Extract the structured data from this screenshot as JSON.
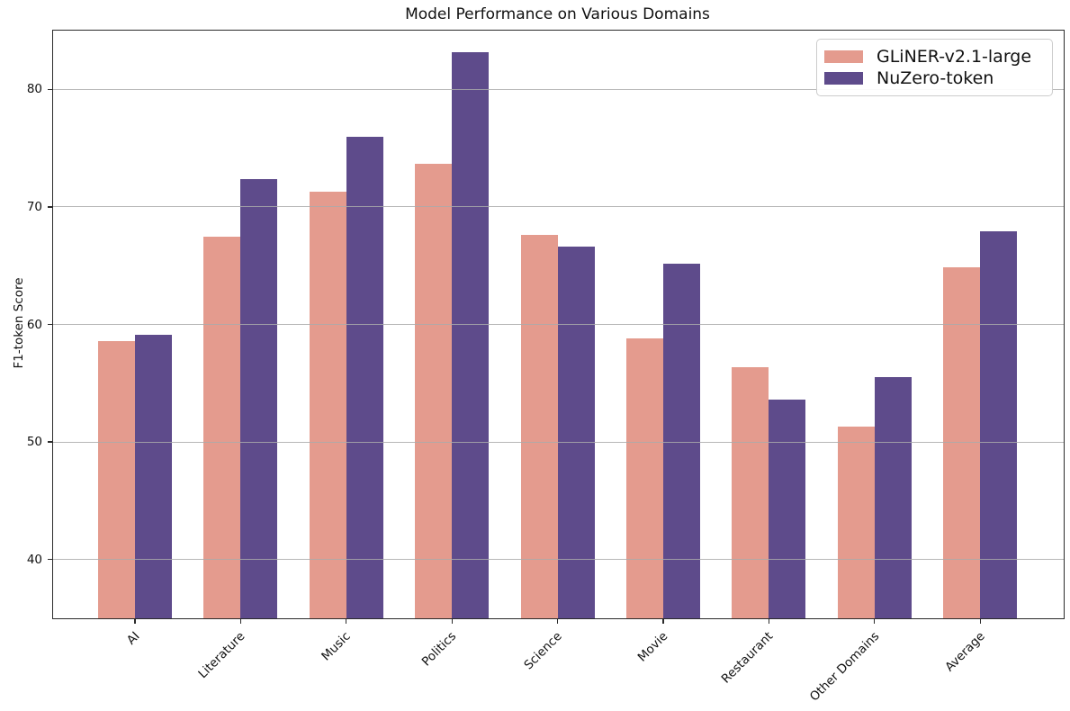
{
  "chart_data": {
    "type": "bar",
    "title": "Model Performance on Various Domains",
    "xlabel": "",
    "ylabel": "F1-token Score",
    "categories": [
      "AI",
      "Literature",
      "Music",
      "Politics",
      "Science",
      "Movie",
      "Restaurant",
      "Other Domains",
      "Average"
    ],
    "series": [
      {
        "name": "GLiNER-v2.1-large",
        "color": "#e49b8e",
        "values": [
          58.6,
          67.5,
          71.3,
          73.7,
          67.6,
          58.8,
          56.4,
          51.3,
          64.9
        ]
      },
      {
        "name": "NuZero-token",
        "color": "#5e4b8b",
        "values": [
          59.1,
          72.4,
          76.0,
          83.2,
          66.6,
          65.2,
          53.6,
          55.5,
          67.9
        ]
      }
    ],
    "ylim": [
      35,
      85
    ],
    "yticks": [
      40,
      50,
      60,
      70,
      80
    ],
    "grid": "horizontal",
    "grid_color": "#aaaaaa",
    "legend_position": "upper right",
    "x_tick_rotation": 45
  }
}
